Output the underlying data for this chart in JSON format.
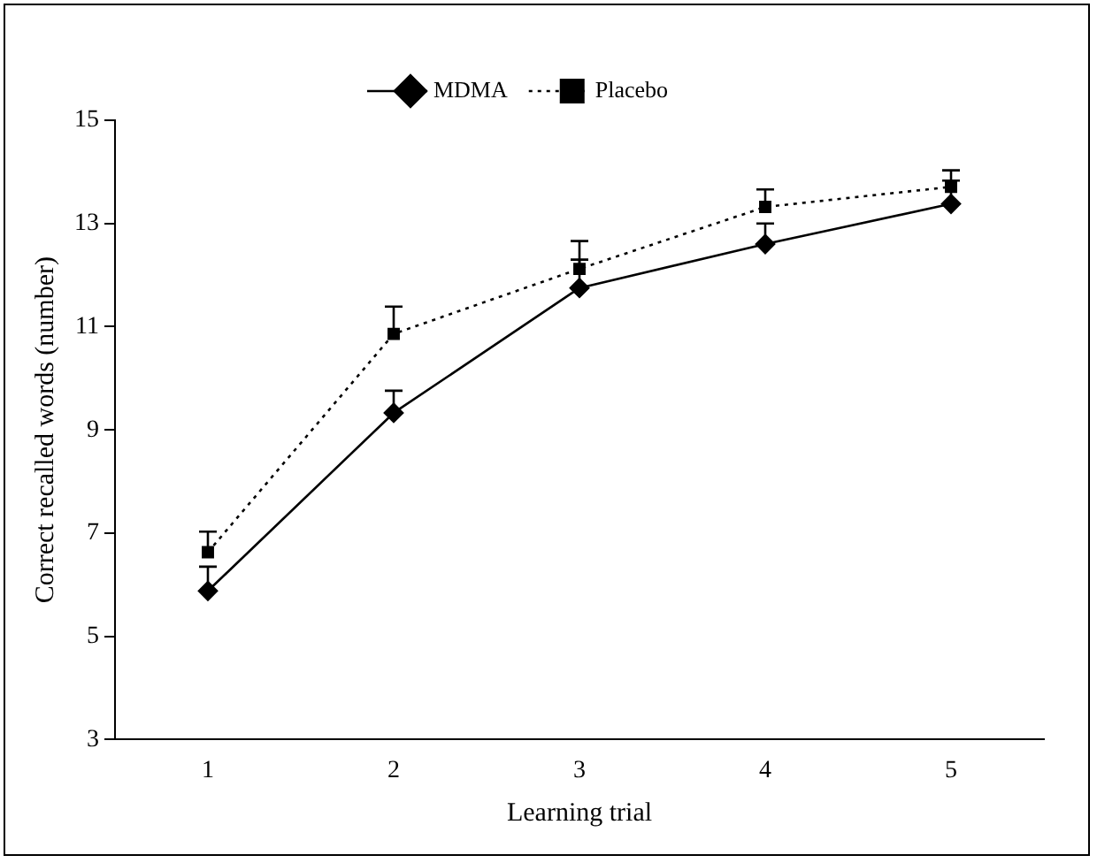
{
  "chart_data": {
    "type": "line",
    "xlabel": "Learning trial",
    "ylabel": "Correct recalled words (number)",
    "categories": [
      "1",
      "2",
      "3",
      "4",
      "5"
    ],
    "series": [
      {
        "name": "MDMA",
        "color": "#000000",
        "marker": "diamond",
        "line_style": "solid",
        "values": [
          5.88,
          9.33,
          11.75,
          12.6,
          13.38
        ],
        "errors": [
          [
            5.88,
            6.35
          ],
          [
            9.33,
            9.76
          ],
          [
            11.75,
            12.3
          ],
          [
            12.6,
            13.0
          ],
          [
            13.38,
            13.83
          ]
        ]
      },
      {
        "name": "Placebo",
        "color": "#000000",
        "marker": "square",
        "line_style": "dotted",
        "values": [
          6.63,
          10.86,
          12.12,
          13.32,
          13.71
        ],
        "errors": [
          [
            6.63,
            7.03
          ],
          [
            10.86,
            11.39
          ],
          [
            12.12,
            12.66
          ],
          [
            13.32,
            13.66
          ],
          [
            13.71,
            14.03
          ]
        ]
      }
    ],
    "ylim": [
      3,
      15
    ],
    "yticks": [
      3,
      5,
      7,
      9,
      11,
      13,
      15
    ],
    "grid": false,
    "legend": "top"
  }
}
